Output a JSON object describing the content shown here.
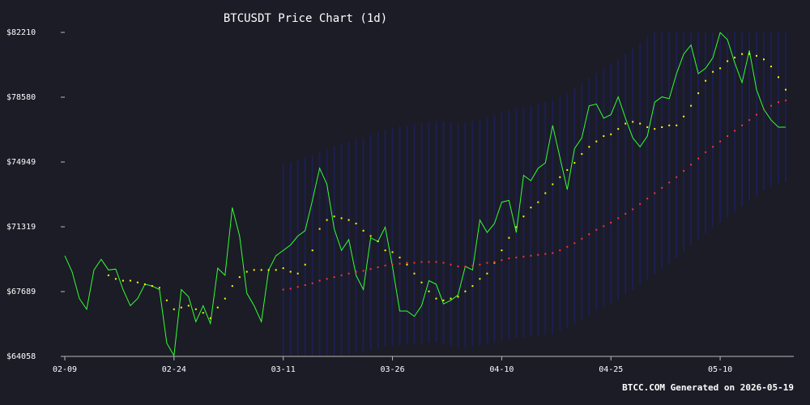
{
  "title": "BTCUSDT Price Chart (1d)",
  "footer": "BTCC.COM Generated on 2026-05-19",
  "colors": {
    "background": "#1b1c26",
    "price_line": "#33ff33",
    "ma_short": "#ffff00",
    "ma_long": "#ff3333",
    "band": "#1d1f5a",
    "text": "#ffffff",
    "axis": "#b8b8b8"
  },
  "chart_data": {
    "type": "line",
    "title": "BTCUSDT Price Chart (1d)",
    "xlabel": "",
    "ylabel": "",
    "x_ticks": [
      "02-09",
      "02-24",
      "03-11",
      "03-26",
      "04-10",
      "04-25",
      "05-10"
    ],
    "y_ticks": [
      "$64058",
      "$67689",
      "$71319",
      "$74949",
      "$78580",
      "$82210"
    ],
    "ylim": [
      64058,
      82210
    ],
    "x_start": "2026-02-09",
    "x_end": "2026-05-19",
    "grid": false,
    "legend": "none",
    "series": [
      {
        "key": "price",
        "style": "line",
        "color": "#33ff33",
        "points": [
          [
            "2026-02-09",
            69700
          ],
          [
            "2026-02-10",
            68800
          ],
          [
            "2026-02-11",
            67300
          ],
          [
            "2026-02-12",
            66700
          ],
          [
            "2026-02-13",
            68900
          ],
          [
            "2026-02-14",
            69500
          ],
          [
            "2026-02-15",
            68900
          ],
          [
            "2026-02-16",
            68950
          ],
          [
            "2026-02-17",
            67800
          ],
          [
            "2026-02-18",
            66900
          ],
          [
            "2026-02-19",
            67300
          ],
          [
            "2026-02-20",
            68100
          ],
          [
            "2026-02-21",
            68000
          ],
          [
            "2026-02-22",
            67800
          ],
          [
            "2026-02-23",
            64800
          ],
          [
            "2026-02-24",
            64100
          ],
          [
            "2026-02-25",
            67800
          ],
          [
            "2026-02-26",
            67400
          ],
          [
            "2026-02-27",
            66000
          ],
          [
            "2026-02-28",
            66900
          ],
          [
            "2026-03-01",
            65900
          ],
          [
            "2026-03-02",
            69000
          ],
          [
            "2026-03-03",
            68600
          ],
          [
            "2026-03-04",
            72400
          ],
          [
            "2026-03-05",
            70800
          ],
          [
            "2026-03-06",
            67600
          ],
          [
            "2026-03-07",
            66900
          ],
          [
            "2026-03-08",
            66000
          ],
          [
            "2026-03-09",
            68900
          ],
          [
            "2026-03-10",
            69700
          ],
          [
            "2026-03-11",
            70000
          ],
          [
            "2026-03-12",
            70300
          ],
          [
            "2026-03-13",
            70800
          ],
          [
            "2026-03-14",
            71100
          ],
          [
            "2026-03-15",
            72800
          ],
          [
            "2026-03-16",
            74600
          ],
          [
            "2026-03-17",
            73700
          ],
          [
            "2026-03-18",
            71200
          ],
          [
            "2026-03-19",
            70000
          ],
          [
            "2026-03-20",
            70600
          ],
          [
            "2026-03-21",
            68600
          ],
          [
            "2026-03-22",
            67800
          ],
          [
            "2026-03-23",
            70700
          ],
          [
            "2026-03-24",
            70500
          ],
          [
            "2026-03-25",
            71300
          ],
          [
            "2026-03-26",
            69100
          ],
          [
            "2026-03-27",
            66600
          ],
          [
            "2026-03-28",
            66600
          ],
          [
            "2026-03-29",
            66300
          ],
          [
            "2026-03-30",
            66900
          ],
          [
            "2026-03-31",
            68300
          ],
          [
            "2026-04-01",
            68100
          ],
          [
            "2026-04-02",
            67000
          ],
          [
            "2026-04-03",
            67200
          ],
          [
            "2026-04-04",
            67500
          ],
          [
            "2026-04-05",
            69100
          ],
          [
            "2026-04-06",
            68900
          ],
          [
            "2026-04-07",
            71700
          ],
          [
            "2026-04-08",
            71000
          ],
          [
            "2026-04-09",
            71500
          ],
          [
            "2026-04-10",
            72700
          ],
          [
            "2026-04-11",
            72800
          ],
          [
            "2026-04-12",
            71000
          ],
          [
            "2026-04-13",
            74200
          ],
          [
            "2026-04-14",
            73900
          ],
          [
            "2026-04-15",
            74600
          ],
          [
            "2026-04-16",
            74900
          ],
          [
            "2026-04-17",
            77000
          ],
          [
            "2026-04-18",
            75200
          ],
          [
            "2026-04-19",
            73400
          ],
          [
            "2026-04-20",
            75700
          ],
          [
            "2026-04-21",
            76300
          ],
          [
            "2026-04-22",
            78100
          ],
          [
            "2026-04-23",
            78200
          ],
          [
            "2026-04-24",
            77400
          ],
          [
            "2026-04-25",
            77600
          ],
          [
            "2026-04-26",
            78600
          ],
          [
            "2026-04-27",
            77400
          ],
          [
            "2026-04-28",
            76300
          ],
          [
            "2026-04-29",
            75800
          ],
          [
            "2026-04-30",
            76400
          ],
          [
            "2026-05-01",
            78300
          ],
          [
            "2026-05-02",
            78600
          ],
          [
            "2026-05-03",
            78500
          ],
          [
            "2026-05-04",
            79900
          ],
          [
            "2026-05-05",
            81000
          ],
          [
            "2026-05-06",
            81500
          ],
          [
            "2026-05-07",
            79900
          ],
          [
            "2026-05-08",
            80200
          ],
          [
            "2026-05-09",
            80800
          ],
          [
            "2026-05-10",
            82200
          ],
          [
            "2026-05-11",
            81800
          ],
          [
            "2026-05-12",
            80500
          ],
          [
            "2026-05-13",
            79400
          ],
          [
            "2026-05-14",
            81200
          ],
          [
            "2026-05-15",
            79000
          ],
          [
            "2026-05-16",
            77900
          ],
          [
            "2026-05-17",
            77300
          ],
          [
            "2026-05-18",
            76900
          ],
          [
            "2026-05-19",
            76900
          ]
        ]
      },
      {
        "key": "ma_short",
        "style": "dots",
        "color": "#ffff00",
        "points": [
          [
            "2026-02-15",
            68600
          ],
          [
            "2026-02-16",
            68400
          ],
          [
            "2026-02-17",
            68300
          ],
          [
            "2026-02-18",
            68300
          ],
          [
            "2026-02-19",
            68200
          ],
          [
            "2026-02-20",
            68100
          ],
          [
            "2026-02-21",
            68000
          ],
          [
            "2026-02-22",
            67900
          ],
          [
            "2026-02-23",
            67200
          ],
          [
            "2026-02-24",
            66700
          ],
          [
            "2026-02-25",
            66800
          ],
          [
            "2026-02-26",
            66900
          ],
          [
            "2026-02-27",
            66700
          ],
          [
            "2026-02-28",
            66500
          ],
          [
            "2026-03-01",
            66200
          ],
          [
            "2026-03-02",
            66800
          ],
          [
            "2026-03-03",
            67300
          ],
          [
            "2026-03-04",
            68000
          ],
          [
            "2026-03-05",
            68500
          ],
          [
            "2026-03-06",
            68800
          ],
          [
            "2026-03-07",
            68900
          ],
          [
            "2026-03-08",
            68900
          ],
          [
            "2026-03-09",
            68900
          ],
          [
            "2026-03-10",
            68900
          ],
          [
            "2026-03-11",
            69000
          ],
          [
            "2026-03-12",
            68800
          ],
          [
            "2026-03-13",
            68700
          ],
          [
            "2026-03-14",
            69200
          ],
          [
            "2026-03-15",
            70000
          ],
          [
            "2026-03-16",
            71200
          ],
          [
            "2026-03-17",
            71700
          ],
          [
            "2026-03-18",
            71900
          ],
          [
            "2026-03-19",
            71800
          ],
          [
            "2026-03-20",
            71700
          ],
          [
            "2026-03-21",
            71500
          ],
          [
            "2026-03-22",
            71100
          ],
          [
            "2026-03-23",
            70800
          ],
          [
            "2026-03-24",
            70500
          ],
          [
            "2026-03-25",
            70000
          ],
          [
            "2026-03-26",
            69900
          ],
          [
            "2026-03-27",
            69600
          ],
          [
            "2026-03-28",
            69200
          ],
          [
            "2026-03-29",
            68700
          ],
          [
            "2026-03-30",
            68200
          ],
          [
            "2026-03-31",
            67700
          ],
          [
            "2026-04-01",
            67300
          ],
          [
            "2026-04-02",
            67200
          ],
          [
            "2026-04-03",
            67300
          ],
          [
            "2026-04-04",
            67400
          ],
          [
            "2026-04-05",
            67700
          ],
          [
            "2026-04-06",
            68000
          ],
          [
            "2026-04-07",
            68400
          ],
          [
            "2026-04-08",
            68700
          ],
          [
            "2026-04-09",
            69300
          ],
          [
            "2026-04-10",
            70000
          ],
          [
            "2026-04-11",
            70700
          ],
          [
            "2026-04-12",
            71300
          ],
          [
            "2026-04-13",
            71900
          ],
          [
            "2026-04-14",
            72400
          ],
          [
            "2026-04-15",
            72700
          ],
          [
            "2026-04-16",
            73200
          ],
          [
            "2026-04-17",
            73700
          ],
          [
            "2026-04-18",
            74100
          ],
          [
            "2026-04-19",
            74500
          ],
          [
            "2026-04-20",
            74900
          ],
          [
            "2026-04-21",
            75400
          ],
          [
            "2026-04-22",
            75800
          ],
          [
            "2026-04-23",
            76100
          ],
          [
            "2026-04-24",
            76400
          ],
          [
            "2026-04-25",
            76500
          ],
          [
            "2026-04-26",
            76800
          ],
          [
            "2026-04-27",
            77100
          ],
          [
            "2026-04-28",
            77200
          ],
          [
            "2026-04-29",
            77100
          ],
          [
            "2026-04-30",
            76900
          ],
          [
            "2026-05-01",
            76800
          ],
          [
            "2026-05-02",
            76900
          ],
          [
            "2026-05-03",
            77000
          ],
          [
            "2026-05-04",
            77000
          ],
          [
            "2026-05-05",
            77500
          ],
          [
            "2026-05-06",
            78100
          ],
          [
            "2026-05-07",
            78800
          ],
          [
            "2026-05-08",
            79500
          ],
          [
            "2026-05-09",
            80000
          ],
          [
            "2026-05-10",
            80200
          ],
          [
            "2026-05-11",
            80600
          ],
          [
            "2026-05-12",
            80800
          ],
          [
            "2026-05-13",
            81000
          ],
          [
            "2026-05-14",
            81000
          ],
          [
            "2026-05-15",
            80900
          ],
          [
            "2026-05-16",
            80700
          ],
          [
            "2026-05-17",
            80300
          ],
          [
            "2026-05-18",
            79700
          ],
          [
            "2026-05-19",
            79000
          ]
        ]
      },
      {
        "key": "ma_long",
        "style": "dots",
        "color": "#ff3333",
        "points": [
          [
            "2026-03-11",
            67800
          ],
          [
            "2026-03-12",
            67850
          ],
          [
            "2026-03-13",
            67950
          ],
          [
            "2026-03-14",
            68050
          ],
          [
            "2026-03-15",
            68150
          ],
          [
            "2026-03-16",
            68300
          ],
          [
            "2026-03-17",
            68400
          ],
          [
            "2026-03-18",
            68500
          ],
          [
            "2026-03-19",
            68600
          ],
          [
            "2026-03-20",
            68700
          ],
          [
            "2026-03-21",
            68800
          ],
          [
            "2026-03-22",
            68850
          ],
          [
            "2026-03-23",
            68950
          ],
          [
            "2026-03-24",
            69050
          ],
          [
            "2026-03-25",
            69150
          ],
          [
            "2026-03-26",
            69200
          ],
          [
            "2026-03-27",
            69250
          ],
          [
            "2026-03-28",
            69300
          ],
          [
            "2026-03-29",
            69300
          ],
          [
            "2026-03-30",
            69350
          ],
          [
            "2026-03-31",
            69350
          ],
          [
            "2026-04-01",
            69350
          ],
          [
            "2026-04-02",
            69300
          ],
          [
            "2026-04-03",
            69200
          ],
          [
            "2026-04-04",
            69100
          ],
          [
            "2026-04-05",
            69100
          ],
          [
            "2026-04-06",
            69150
          ],
          [
            "2026-04-07",
            69200
          ],
          [
            "2026-04-08",
            69300
          ],
          [
            "2026-04-09",
            69350
          ],
          [
            "2026-04-10",
            69450
          ],
          [
            "2026-04-11",
            69550
          ],
          [
            "2026-04-12",
            69600
          ],
          [
            "2026-04-13",
            69650
          ],
          [
            "2026-04-14",
            69700
          ],
          [
            "2026-04-15",
            69750
          ],
          [
            "2026-04-16",
            69800
          ],
          [
            "2026-04-17",
            69850
          ],
          [
            "2026-04-18",
            70000
          ],
          [
            "2026-04-19",
            70200
          ],
          [
            "2026-04-20",
            70400
          ],
          [
            "2026-04-21",
            70650
          ],
          [
            "2026-04-22",
            70900
          ],
          [
            "2026-04-23",
            71150
          ],
          [
            "2026-04-24",
            71350
          ],
          [
            "2026-04-25",
            71550
          ],
          [
            "2026-04-26",
            71800
          ],
          [
            "2026-04-27",
            72050
          ],
          [
            "2026-04-28",
            72300
          ],
          [
            "2026-04-29",
            72600
          ],
          [
            "2026-04-30",
            72900
          ],
          [
            "2026-05-01",
            73200
          ],
          [
            "2026-05-02",
            73500
          ],
          [
            "2026-05-03",
            73800
          ],
          [
            "2026-05-04",
            74100
          ],
          [
            "2026-05-05",
            74450
          ],
          [
            "2026-05-06",
            74800
          ],
          [
            "2026-05-07",
            75150
          ],
          [
            "2026-05-08",
            75500
          ],
          [
            "2026-05-09",
            75800
          ],
          [
            "2026-05-10",
            76100
          ],
          [
            "2026-05-11",
            76400
          ],
          [
            "2026-05-12",
            76700
          ],
          [
            "2026-05-13",
            77000
          ],
          [
            "2026-05-14",
            77300
          ],
          [
            "2026-05-15",
            77600
          ],
          [
            "2026-05-16",
            77900
          ],
          [
            "2026-05-17",
            78100
          ],
          [
            "2026-05-18",
            78300
          ],
          [
            "2026-05-19",
            78400
          ]
        ]
      }
    ]
  }
}
